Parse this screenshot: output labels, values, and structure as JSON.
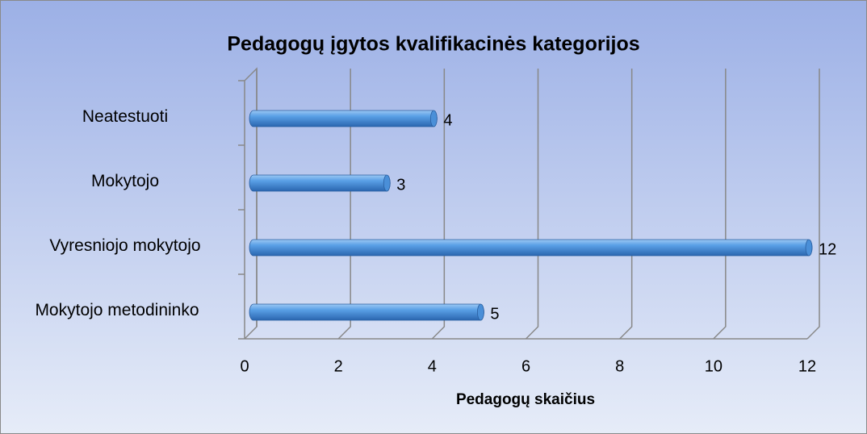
{
  "chart_data": {
    "type": "bar",
    "orientation": "horizontal",
    "title": "Pedagogų įgytos kvalifikacinės kategorijos",
    "x_label": "Pedagogų skaičius",
    "categories": [
      "Neatestuoti",
      "Mokytojo",
      "Vyresniojo mokytojo",
      "Mokytojo metodininko"
    ],
    "values": [
      4,
      3,
      12,
      5
    ],
    "color": "#4a8fd8",
    "xlim": [
      0,
      12
    ],
    "xticks": [
      0,
      2,
      4,
      6,
      8,
      10,
      12
    ],
    "grid": true
  }
}
